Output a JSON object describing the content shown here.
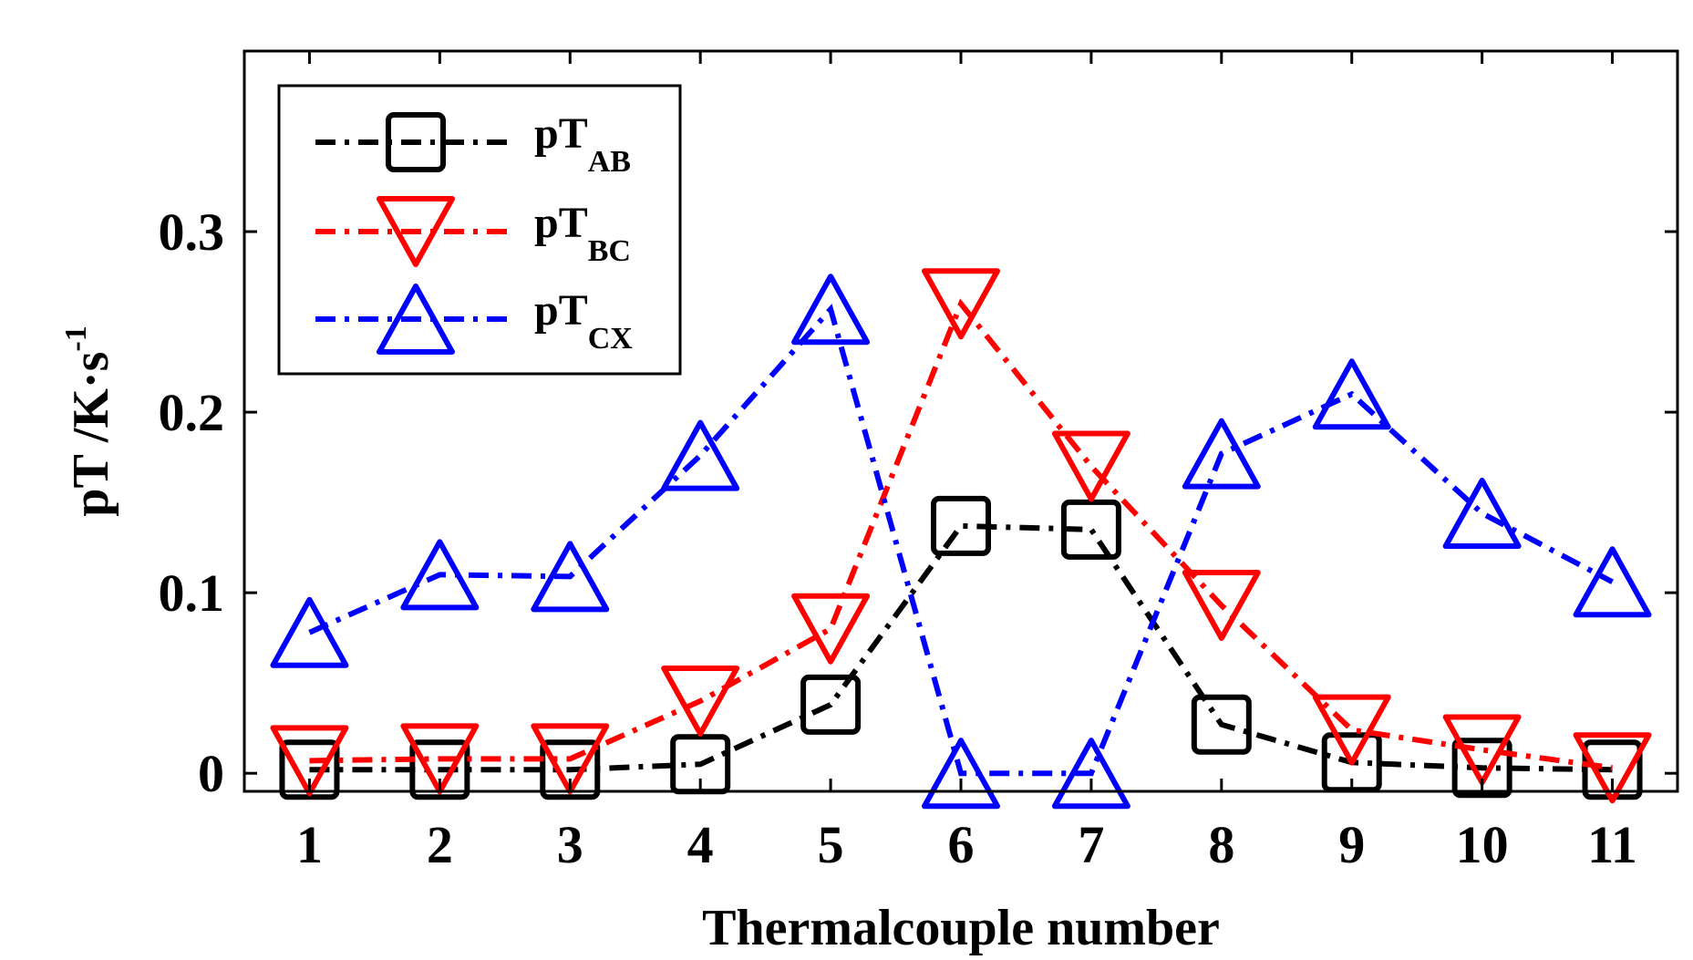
{
  "chart_data": {
    "type": "line",
    "xlabel": "Thermalcouple number",
    "ylabel": {
      "main": "pT /K·s",
      "sup": "-1"
    },
    "x": [
      1,
      2,
      3,
      4,
      5,
      6,
      7,
      8,
      9,
      10,
      11
    ],
    "xlim": [
      0.5,
      11.5
    ],
    "ylim": [
      -0.01,
      0.4
    ],
    "yticks": [
      0,
      0.1,
      0.2,
      0.3
    ],
    "ytick_labels": [
      "0",
      "0.1",
      "0.2",
      "0.3"
    ],
    "grid": false,
    "legend_position": "top-left",
    "series": [
      {
        "name": "pT",
        "name_sub": "AB",
        "color": "#000000",
        "marker": "square",
        "values": [
          0.002,
          0.002,
          0.002,
          0.005,
          0.038,
          0.137,
          0.135,
          0.027,
          0.006,
          0.003,
          0.002
        ]
      },
      {
        "name": "pT",
        "name_sub": "BC",
        "color": "#ff0000",
        "marker": "triangle-down",
        "values": [
          0.007,
          0.008,
          0.008,
          0.04,
          0.08,
          0.26,
          0.17,
          0.093,
          0.024,
          0.013,
          0.003
        ]
      },
      {
        "name": "pT",
        "name_sub": "CX",
        "color": "#0000ff",
        "marker": "triangle-up",
        "values": [
          0.078,
          0.11,
          0.109,
          0.176,
          0.257,
          0.0,
          0.0,
          0.177,
          0.21,
          0.144,
          0.106
        ]
      }
    ]
  }
}
